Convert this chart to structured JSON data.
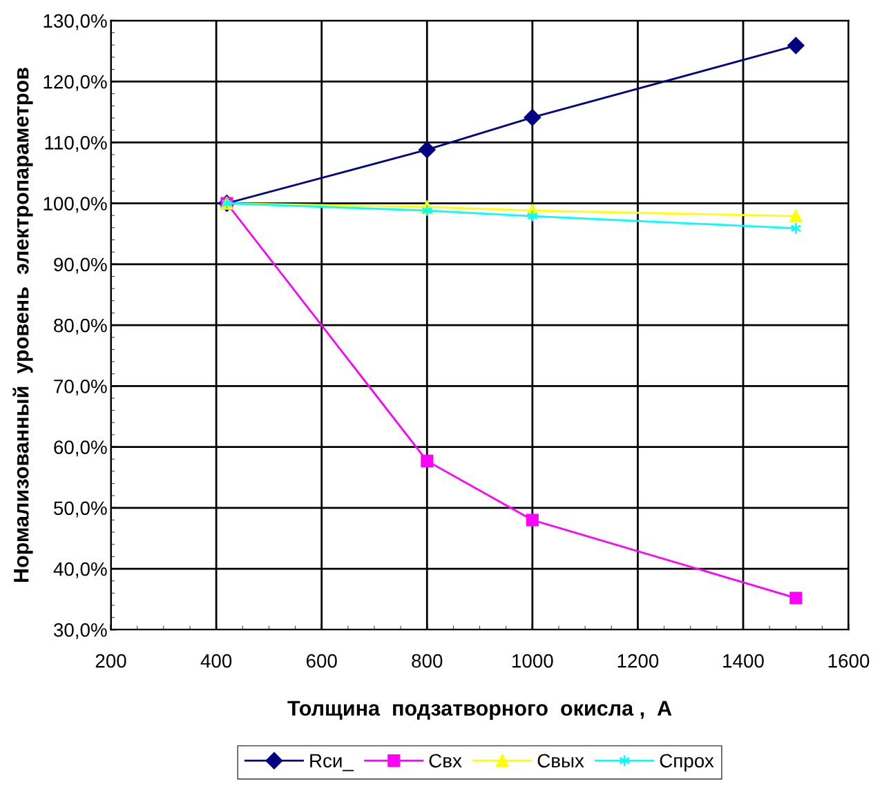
{
  "chart_data": {
    "type": "line",
    "xlabel": "Толщина  подзатворного  окисла ,  А",
    "ylabel": "Нормализованный  уровень  электропараметров",
    "x": [
      420,
      800,
      1000,
      1500
    ],
    "series": [
      {
        "name": "Rси_",
        "color": "#000080",
        "values": [
          100,
          108.8,
          114.1,
          125.9
        ],
        "marker": "diamond"
      },
      {
        "name": "Свх",
        "color": "#ff00ff",
        "values": [
          100,
          57.7,
          48,
          35.2
        ],
        "marker": "square"
      },
      {
        "name": "Свых",
        "color": "#ffff00",
        "values": [
          100,
          99.4,
          98.8,
          97.9
        ],
        "marker": "triangle"
      },
      {
        "name": "Спрох",
        "color": "#00ffff",
        "values": [
          100,
          98.8,
          97.9,
          95.9
        ],
        "marker": "cross"
      }
    ],
    "xlim": [
      200,
      1600
    ],
    "xticks": [
      200,
      400,
      600,
      800,
      1000,
      1200,
      1400,
      1600
    ],
    "ylim": [
      30,
      130
    ],
    "yticks": [
      {
        "value": 30,
        "label": "30,0%"
      },
      {
        "value": 40,
        "label": "40,0%"
      },
      {
        "value": 50,
        "label": "50,0%"
      },
      {
        "value": 60,
        "label": "60,0%"
      },
      {
        "value": 70,
        "label": "70,0%"
      },
      {
        "value": 80,
        "label": "80,0%"
      },
      {
        "value": 90,
        "label": "90,0%"
      },
      {
        "value": 100,
        "label": "100,0%"
      },
      {
        "value": 110,
        "label": "110,0%"
      },
      {
        "value": 120,
        "label": "120,0%"
      },
      {
        "value": 130,
        "label": "130,0%"
      }
    ],
    "grid": true,
    "legend": "bottom",
    "line_style": "solid"
  }
}
